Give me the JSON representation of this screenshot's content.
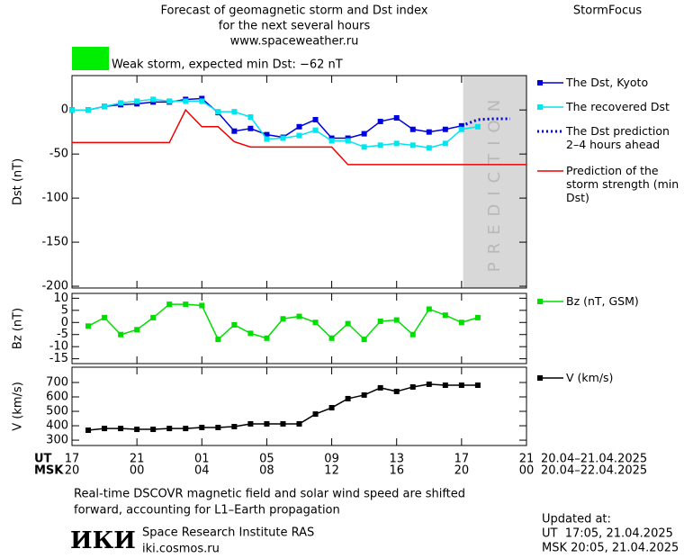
{
  "header": {
    "title_lines": [
      "Forecast of geomagnetic storm and Dst index",
      "for the next several hours",
      "www.spaceweather.ru"
    ],
    "brand": "StormFocus"
  },
  "storm_box": {
    "label": "Weak storm, expected min Dst: −62 nT",
    "color": "#00ee00"
  },
  "chart_data": [
    {
      "type": "line",
      "ylabel": "Dst (nT)",
      "xlim": [
        0,
        28
      ],
      "xticks": [
        0,
        4,
        8,
        12,
        16,
        20,
        24,
        28
      ],
      "ylim": [
        -202,
        39
      ],
      "yticks": [
        0,
        -50,
        -100,
        -150,
        -200
      ],
      "prediction_zone": {
        "label": "PREDICTION",
        "xlim": [
          24.1,
          28
        ],
        "color": "#d8d8d8"
      },
      "series": [
        {
          "name": "The Dst, Kyoto",
          "color": "#0000dd",
          "marker": "square",
          "x": [
            0,
            1,
            2,
            3,
            4,
            5,
            6,
            7,
            8,
            9,
            10,
            11,
            12,
            13,
            14,
            15,
            16,
            17,
            18,
            19,
            20,
            21,
            22,
            23,
            24
          ],
          "values": [
            0,
            0,
            4,
            6,
            7,
            9,
            9,
            12,
            13,
            -3,
            -24,
            -21,
            -28,
            -31,
            -19,
            -11,
            -32,
            -32,
            -27,
            -13,
            -9,
            -22,
            -25,
            -22,
            -18
          ]
        },
        {
          "name": "The recovered Dst",
          "color": "#00e5ee",
          "marker": "square",
          "x": [
            0,
            1,
            2,
            3,
            4,
            5,
            6,
            7,
            8,
            9,
            10,
            11,
            12,
            13,
            14,
            15,
            16,
            17,
            18,
            19,
            20,
            21,
            22,
            23,
            24,
            25
          ],
          "values": [
            0,
            0,
            4,
            8,
            10,
            12,
            10,
            10,
            10,
            -2,
            -2,
            -8,
            -33,
            -32,
            -29,
            -23,
            -35,
            -35,
            -42,
            -40,
            -38,
            -40,
            -43,
            -38,
            -22,
            -19
          ]
        },
        {
          "name": "The Dst prediction 2–4 hours ahead",
          "color": "#0000dd",
          "line_style": "dotted",
          "x": [
            24,
            25,
            26,
            27
          ],
          "values": [
            -18,
            -11,
            -10,
            -10
          ]
        },
        {
          "name": "Prediction of the storm strength (min Dst)",
          "color": "#ee0000",
          "x": [
            0,
            6,
            7,
            8,
            9,
            10,
            11,
            16,
            17,
            28
          ],
          "values": [
            -37,
            -37,
            0,
            -19,
            -19,
            -36,
            -42,
            -42,
            -62,
            -62
          ]
        }
      ]
    },
    {
      "type": "line",
      "ylabel": "Bz (nT)",
      "xlim": [
        0,
        28
      ],
      "xticks": [
        0,
        4,
        8,
        12,
        16,
        20,
        24,
        28
      ],
      "ylim": [
        -17,
        12
      ],
      "yticks": [
        10,
        5,
        0,
        -5,
        -10,
        -15
      ],
      "series": [
        {
          "name": "Bz (nT, GSM)",
          "color": "#00dd00",
          "marker": "square",
          "x": [
            1,
            2,
            3,
            4,
            5,
            6,
            7,
            8,
            9,
            10,
            11,
            12,
            13,
            14,
            15,
            16,
            17,
            18,
            19,
            20,
            21,
            22,
            23,
            24,
            25
          ],
          "values": [
            -1.5,
            2,
            -5,
            -3,
            2,
            7.5,
            7.5,
            7,
            -7,
            -1,
            -4.5,
            -6.5,
            1.5,
            2.5,
            0,
            -6.5,
            -0.5,
            -7,
            0.5,
            1,
            -5,
            5.5,
            3,
            0,
            2
          ]
        }
      ]
    },
    {
      "type": "line",
      "ylabel": "V (km/s)",
      "xlim": [
        0,
        28
      ],
      "xticks": [
        0,
        4,
        8,
        12,
        16,
        20,
        24,
        28
      ],
      "ylim": [
        263,
        806
      ],
      "yticks": [
        300,
        400,
        500,
        600,
        700
      ],
      "series": [
        {
          "name": "V (km/s)",
          "color": "#000000",
          "marker": "square",
          "x": [
            1,
            2,
            3,
            4,
            5,
            6,
            7,
            8,
            9,
            10,
            11,
            12,
            13,
            14,
            15,
            16,
            17,
            18,
            19,
            20,
            21,
            22,
            23,
            24,
            25
          ],
          "values": [
            369,
            381,
            381,
            375,
            375,
            381,
            381,
            388,
            388,
            394,
            413,
            413,
            413,
            413,
            481,
            525,
            588,
            613,
            663,
            638,
            669,
            688,
            681,
            681,
            681
          ]
        }
      ]
    }
  ],
  "time_axis": [
    {
      "name": "UT",
      "labels": [
        "17",
        "21",
        "01",
        "05",
        "09",
        "13",
        "17",
        "21"
      ],
      "range": "20.04–21.04.2025"
    },
    {
      "name": "MSK",
      "labels": [
        "20",
        "00",
        "04",
        "08",
        "12",
        "16",
        "20",
        "00"
      ],
      "range": "20.04–22.04.2025"
    }
  ],
  "footer": {
    "note_lines": [
      "Real-time DSCOVR magnetic field and solar wind speed are shifted",
      "forward, accounting for L1–Earth propagation"
    ],
    "logo": "ИКИ",
    "institute": "Space Research Institute RAS",
    "site": "iki.cosmos.ru",
    "updated": [
      "Updated at:",
      "UT  17:05, 21.04.2025",
      "MSK 20:05, 21.04.2025"
    ]
  }
}
